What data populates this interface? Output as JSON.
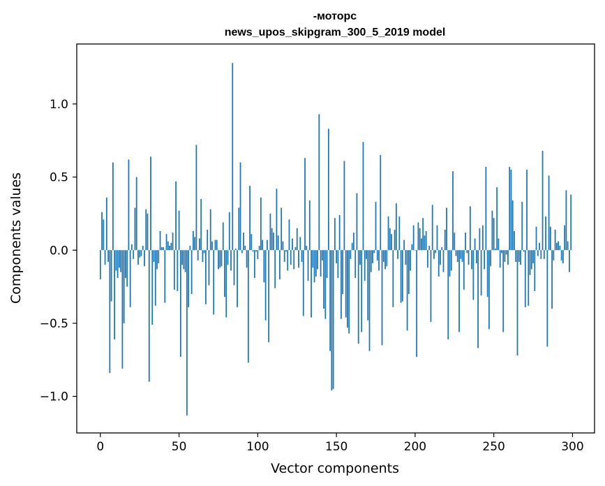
{
  "chart_data": {
    "type": "bar",
    "title_line1": "-моторс",
    "title_line2": "news_upos_skipgram_300_5_2019 model",
    "xlabel": "Vector components",
    "ylabel": "Components values",
    "xlim": [
      -15,
      314
    ],
    "ylim": [
      -1.25,
      1.41
    ],
    "x_ticks": [
      0,
      50,
      100,
      150,
      200,
      250,
      300
    ],
    "x_tick_labels": [
      "0",
      "50",
      "100",
      "150",
      "200",
      "250",
      "300"
    ],
    "y_ticks": [
      -1.0,
      -0.5,
      0.0,
      0.5,
      1.0
    ],
    "y_tick_labels": [
      "−1.0",
      "−0.5",
      "0.0",
      "0.5",
      "1.0"
    ],
    "grid": false,
    "bar_color": "#1f77b4",
    "x": "indices 0..299",
    "values": [
      -0.2,
      0.26,
      0.21,
      -0.1,
      0.36,
      -0.08,
      -0.84,
      -0.35,
      0.6,
      -0.61,
      -0.14,
      -0.19,
      -0.12,
      -0.15,
      -0.81,
      -0.5,
      -0.19,
      -0.25,
      0.62,
      -0.39,
      0.04,
      -0.06,
      0.29,
      0.5,
      -0.1,
      -0.05,
      -0.04,
      0.03,
      -0.11,
      0.28,
      0.25,
      -0.9,
      0.64,
      -0.51,
      -0.08,
      -0.38,
      -0.13,
      -0.09,
      0.13,
      0.02,
      0.02,
      -0.36,
      0.11,
      0.06,
      0.03,
      0.05,
      0.12,
      -0.27,
      0.47,
      -0.28,
      0.27,
      -0.73,
      -0.1,
      -0.13,
      -0.15,
      -1.13,
      -0.39,
      0.03,
      -0.3,
      0.13,
      0.09,
      0.72,
      -0.07,
      0.08,
      0.35,
      -0.08,
      -0.02,
      -0.37,
      0.14,
      -0.24,
      0.28,
      0.06,
      -0.44,
      0.07,
      0.07,
      -0.13,
      -0.12,
      -0.11,
      0.19,
      -0.32,
      -0.46,
      -0.1,
      0.26,
      -0.14,
      1.28,
      -0.24,
      0.01,
      -0.39,
      0.29,
      0.6,
      -0.02,
      0.12,
      0.03,
      -0.12,
      -0.77,
      0.44,
      0.11,
      -0.01,
      -0.19,
      -0.01,
      -0.06,
      0.03,
      0.36,
      0.07,
      -0.22,
      -0.48,
      0.07,
      -0.63,
      0.25,
      0.15,
      0.12,
      -0.26,
      0.42,
      0.1,
      -0.2,
      0.29,
      0.06,
      -0.08,
      -0.01,
      -0.14,
      0.21,
      -0.1,
      0.08,
      -0.13,
      0.02,
      0.15,
      -0.12,
      0.09,
      -0.08,
      -0.45,
      0.63,
      0.03,
      -0.21,
      0.34,
      -0.46,
      -0.12,
      -0.22,
      -0.18,
      -0.13,
      0.93,
      -0.18,
      -0.07,
      -0.4,
      -0.47,
      -0.19,
      0.83,
      -0.69,
      -0.96,
      -0.95,
      0.22,
      -0.09,
      -0.19,
      0.24,
      -0.47,
      -0.3,
      0.61,
      -0.46,
      -0.53,
      -0.57,
      -0.06,
      0.05,
      0.12,
      -0.19,
      0.39,
      -0.64,
      -0.1,
      -0.56,
      0.74,
      -0.21,
      -0.06,
      -0.48,
      -0.69,
      -0.15,
      -0.09,
      -0.02,
      0.33,
      -0.07,
      -0.14,
      0.65,
      -0.65,
      -0.08,
      -0.13,
      -0.11,
      0.23,
      0.15,
      0.11,
      -0.39,
      0.14,
      0.32,
      -0.06,
      0.23,
      -0.36,
      -0.35,
      0.07,
      -0.1,
      -0.55,
      -0.3,
      -0.14,
      0.04,
      0.17,
      0.0,
      -0.73,
      0.19,
      0.15,
      0.08,
      0.22,
      0.1,
      0.13,
      -0.12,
      0.03,
      -0.49,
      0.31,
      -0.06,
      -0.02,
      0.17,
      -0.18,
      -0.1,
      0.02,
      -0.15,
      0.14,
      0.29,
      -0.61,
      -0.18,
      -0.14,
      0.54,
      0.12,
      -0.04,
      -0.08,
      -0.56,
      -0.06,
      -0.08,
      -0.27,
      0.12,
      -0.02,
      -0.1,
      0.3,
      -0.13,
      -0.34,
      0.08,
      -0.09,
      -0.67,
      0.15,
      -0.31,
      0.17,
      -0.13,
      0.57,
      -0.32,
      -0.54,
      -0.11,
      0.27,
      0.22,
      0.01,
      0.43,
      0.08,
      -0.12,
      -0.02,
      -0.56,
      -0.08,
      -0.03,
      -0.1,
      0.57,
      0.55,
      0.34,
      0.13,
      -0.08,
      -0.72,
      -0.08,
      -0.1,
      0.33,
      -0.01,
      -0.39,
      0.55,
      -0.38,
      -0.17,
      -0.13,
      -0.09,
      -0.28,
      0.16,
      -0.04,
      0.05,
      -0.06,
      0.68,
      -0.06,
      0.23,
      -0.66,
      0.51,
      0.16,
      -0.4,
      -0.07,
      0.14,
      0.05,
      0.06,
      0.03,
      -0.07,
      -0.09,
      0.17,
      0.41,
      0.06,
      -0.15,
      0.38
    ]
  }
}
